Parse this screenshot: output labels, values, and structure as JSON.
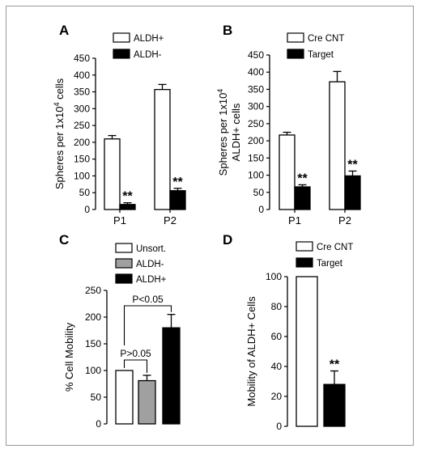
{
  "panels": [
    {
      "letter": "A",
      "type": "bar",
      "ylabel_lines": [
        "Spheres per 1x10",
        "cells"
      ],
      "ylabel_sup": "4",
      "yticks": [
        0,
        50,
        100,
        150,
        200,
        250,
        300,
        350,
        400,
        450
      ],
      "ylim": [
        0,
        450
      ],
      "categories": [
        "P1",
        "P2"
      ],
      "series": [
        {
          "name": "ALDH+",
          "color": "#ffffff",
          "values": [
            210,
            357
          ],
          "errors": [
            10,
            15
          ]
        },
        {
          "name": "ALDH-",
          "color": "#000000",
          "values": [
            15,
            56
          ],
          "errors": [
            5,
            7
          ]
        }
      ],
      "stars": [
        {
          "series": 1,
          "cat": 0,
          "text": "**"
        },
        {
          "series": 1,
          "cat": 1,
          "text": "**"
        }
      ]
    },
    {
      "letter": "B",
      "type": "bar",
      "ylabel_lines": [
        "Spheres per 1x10",
        "ALDH+ cells"
      ],
      "ylabel_sup": "4",
      "yticks": [
        0,
        50,
        100,
        150,
        200,
        250,
        300,
        350,
        400,
        450
      ],
      "ylim": [
        0,
        450
      ],
      "categories": [
        "P1",
        "P2"
      ],
      "series": [
        {
          "name": "Cre CNT",
          "color": "#ffffff",
          "values": [
            217,
            372
          ],
          "errors": [
            8,
            30
          ]
        },
        {
          "name": "Target",
          "color": "#000000",
          "values": [
            66,
            98
          ],
          "errors": [
            6,
            14
          ]
        }
      ],
      "stars": [
        {
          "series": 1,
          "cat": 0,
          "text": "**"
        },
        {
          "series": 1,
          "cat": 1,
          "text": "**"
        }
      ]
    },
    {
      "letter": "C",
      "type": "bar",
      "ylabel_lines": [
        "% Cell Mobility"
      ],
      "ylabel_sup": "",
      "yticks": [
        0,
        50,
        100,
        150,
        200,
        250
      ],
      "ylim": [
        0,
        250
      ],
      "categories": [
        "Unsort.",
        "ALDH-",
        "ALDH+"
      ],
      "series": [
        {
          "name": "Unsort.",
          "color": "#ffffff",
          "values": [
            100
          ],
          "errors": [
            0
          ]
        },
        {
          "name": "ALDH-",
          "color": "#a0a0a0",
          "values": [
            81
          ],
          "errors": [
            10
          ]
        },
        {
          "name": "ALDH+",
          "color": "#000000",
          "values": [
            180
          ],
          "errors": [
            25
          ]
        }
      ],
      "annotations": [
        "P>0.05",
        "P<0.05"
      ]
    },
    {
      "letter": "D",
      "type": "bar",
      "ylabel_lines": [
        "Mobility of ALDH+ Cells"
      ],
      "ylabel_sup": "",
      "yticks": [
        0,
        20,
        40,
        60,
        80,
        100
      ],
      "ylim": [
        0,
        100
      ],
      "categories": [
        "Cre CNT",
        "Target"
      ],
      "series": [
        {
          "name": "Cre CNT",
          "color": "#ffffff",
          "values": [
            100
          ],
          "errors": [
            0
          ]
        },
        {
          "name": "Target",
          "color": "#000000",
          "values": [
            28
          ],
          "errors": [
            9
          ]
        }
      ],
      "stars": [
        {
          "series": 1,
          "cat": 0,
          "text": "**"
        }
      ]
    }
  ],
  "chart_data": [
    {
      "type": "bar",
      "title": "A",
      "ylabel": "Spheres per 1x10^4 cells",
      "xlabel": "",
      "categories": [
        "P1",
        "P2"
      ],
      "ylim": [
        0,
        450
      ],
      "series": [
        {
          "name": "ALDH+",
          "values": [
            210,
            357
          ]
        },
        {
          "name": "ALDH-",
          "values": [
            15,
            56
          ]
        }
      ]
    },
    {
      "type": "bar",
      "title": "B",
      "ylabel": "Spheres per 1x10^4 ALDH+ cells",
      "xlabel": "",
      "categories": [
        "P1",
        "P2"
      ],
      "ylim": [
        0,
        450
      ],
      "series": [
        {
          "name": "Cre CNT",
          "values": [
            217,
            372
          ]
        },
        {
          "name": "Target",
          "values": [
            66,
            98
          ]
        }
      ]
    },
    {
      "type": "bar",
      "title": "C",
      "ylabel": "% Cell Mobility",
      "xlabel": "",
      "categories": [
        "Unsort.",
        "ALDH-",
        "ALDH+"
      ],
      "ylim": [
        0,
        250
      ],
      "series": [
        {
          "name": "",
          "values": [
            100,
            81,
            180
          ]
        }
      ],
      "annotations": [
        "P>0.05",
        "P<0.05"
      ]
    },
    {
      "type": "bar",
      "title": "D",
      "ylabel": "Mobility of ALDH+ Cells",
      "xlabel": "",
      "categories": [
        "Cre CNT",
        "Target"
      ],
      "ylim": [
        0,
        100
      ],
      "series": [
        {
          "name": "",
          "values": [
            100,
            28
          ]
        }
      ]
    }
  ]
}
